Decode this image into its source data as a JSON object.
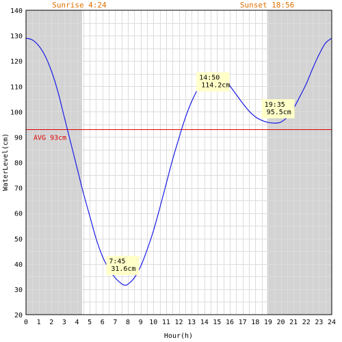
{
  "chart_data": {
    "type": "line",
    "xlabel": "Hour(h)",
    "ylabel": "WaterLevel(cm)",
    "xlim": [
      0,
      24
    ],
    "ylim": [
      20,
      140
    ],
    "x_ticks": [
      0,
      1,
      2,
      3,
      4,
      5,
      6,
      7,
      8,
      9,
      10,
      11,
      12,
      13,
      14,
      15,
      16,
      17,
      18,
      19,
      20,
      21,
      22,
      23,
      24
    ],
    "y_ticks": [
      20,
      30,
      40,
      50,
      60,
      70,
      80,
      90,
      100,
      110,
      120,
      130,
      140
    ],
    "grid": true,
    "sunrise": {
      "label": "Sunrise 4:24",
      "hour": 4.4
    },
    "sunset": {
      "label": "Sunset 18:56",
      "hour": 18.93
    },
    "average": {
      "label": "AVG 93cm",
      "value": 93
    },
    "series": [
      {
        "points": [
          [
            0,
            129
          ],
          [
            0.5,
            128.3
          ],
          [
            1,
            126
          ],
          [
            1.5,
            122
          ],
          [
            2,
            116
          ],
          [
            2.5,
            108
          ],
          [
            3,
            98
          ],
          [
            3.5,
            88
          ],
          [
            4,
            78
          ],
          [
            4.5,
            68
          ],
          [
            5,
            59
          ],
          [
            5.5,
            50
          ],
          [
            6,
            43
          ],
          [
            6.5,
            38
          ],
          [
            7,
            34.5
          ],
          [
            7.5,
            32.2
          ],
          [
            7.75,
            31.6
          ],
          [
            8,
            32
          ],
          [
            8.5,
            34.5
          ],
          [
            9,
            39
          ],
          [
            9.5,
            45.5
          ],
          [
            10,
            53
          ],
          [
            10.5,
            62
          ],
          [
            11,
            71.5
          ],
          [
            11.5,
            81
          ],
          [
            12,
            89.5
          ],
          [
            12.5,
            97.5
          ],
          [
            13,
            104
          ],
          [
            13.5,
            109
          ],
          [
            14,
            112.5
          ],
          [
            14.5,
            114
          ],
          [
            14.83,
            114.2
          ],
          [
            15.2,
            113.7
          ],
          [
            15.7,
            111.8
          ],
          [
            16,
            110.2
          ],
          [
            16.5,
            106.8
          ],
          [
            17,
            103.4
          ],
          [
            17.5,
            100.3
          ],
          [
            18,
            98
          ],
          [
            18.5,
            96.6
          ],
          [
            19,
            95.8
          ],
          [
            19.58,
            95.5
          ],
          [
            20,
            95.9
          ],
          [
            20.5,
            97.8
          ],
          [
            21,
            101.3
          ],
          [
            21.5,
            106
          ],
          [
            22,
            111
          ],
          [
            22.5,
            117
          ],
          [
            23,
            122.5
          ],
          [
            23.5,
            127
          ],
          [
            24,
            129
          ]
        ]
      }
    ],
    "annotations": [
      {
        "time": "7:45",
        "value_label": "31.6cm",
        "x": 7.75,
        "y": 31.6
      },
      {
        "time": "14:50",
        "value_label": "114.2cm",
        "x": 14.83,
        "y": 114.2
      },
      {
        "time": "19:35",
        "value_label": "95.5cm",
        "x": 19.58,
        "y": 95.5
      }
    ],
    "colors": {
      "line": "#1a1ae6",
      "night": "#d3d3d3",
      "grid": "#dcdcdc",
      "avg": "#dd0000",
      "sun_label": "#e07000",
      "annotation_bg": "#ffffc8"
    }
  }
}
